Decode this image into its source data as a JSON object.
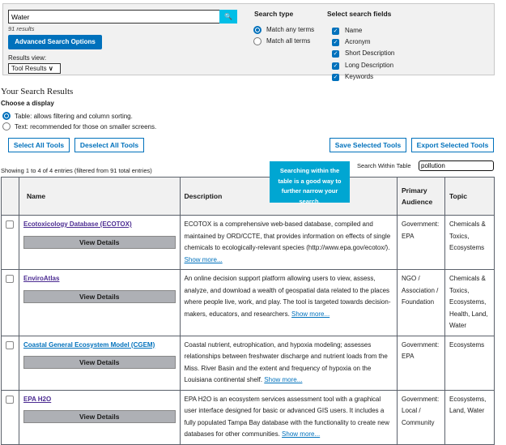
{
  "search": {
    "value": "Water",
    "button_icon": "search-icon",
    "results_count": "91 results",
    "advanced_label": "Advanced Search Options",
    "results_view_label": "Results view:",
    "results_view_value": "Tool Results"
  },
  "search_type": {
    "title": "Search type",
    "options": [
      "Match any terms",
      "Match all terms"
    ],
    "selected": 0
  },
  "search_fields": {
    "title": "Select search fields",
    "options": [
      "Name",
      "Acronym",
      "Short Description",
      "Long Description",
      "Keywords"
    ]
  },
  "results": {
    "heading": "Your Search Results",
    "display_title": "Choose a display",
    "display_options": [
      "Table: allows filtering and column sorting.",
      "Text: recommended for those on smaller screens."
    ],
    "buttons": {
      "select_all": "Select All Tools",
      "deselect_all": "Deselect All Tools",
      "save": "Save Selected Tools",
      "export": "Export Selected Tools"
    },
    "showing": "Showing 1 to 4 of 4 entries (filtered from 91 total entries)",
    "search_within_label": "Search Within Table",
    "search_within_value": "pollution",
    "tooltip": "Searching within the table is a good way to further narrow your search."
  },
  "table": {
    "headers": [
      "Name",
      "Description",
      "Primary Audience",
      "Topic"
    ],
    "view_details": "View Details",
    "show_more": "Show more...",
    "rows": [
      {
        "name": "Ecotoxicology Database (ECOTOX)",
        "description": "ECOTOX is a comprehensive web-based database, compiled and maintained by ORD/CCTE, that provides information on effects of single chemicals to ecologically-relevant species (http://www.epa.gov/ecotox/).",
        "audience": "Government: EPA",
        "topic": "Chemicals & Toxics, Ecosystems"
      },
      {
        "name": "EnviroAtlas",
        "description": "An online decision support platform allowing users to view, assess, analyze, and download a wealth of geospatial data related to the places where people live, work, and play. The tool is targeted towards decision-makers, educators, and researchers.",
        "audience": "NGO / Association / Foundation",
        "topic": "Chemicals & Toxics, Ecosystems, Health, Land, Water"
      },
      {
        "name": "Coastal General Ecosystem Model (CGEM)",
        "description": "Coastal nutrient, eutrophication, and hypoxia modeling; assesses relationships between freshwater discharge and nutrient loads from the Miss. River Basin and the extent and frequency of hypoxia on the Louisiana continental shelf.",
        "audience": "Government: EPA",
        "topic": "Ecosystems"
      },
      {
        "name": "EPA H2O",
        "description": "EPA H2O is an ecosystem services assessment tool with a graphical user interface designed for basic or advanced GIS users. It includes a fully populated Tampa Bay database with the functionality to create new databases for other communities.",
        "audience": "Government: Local / Community",
        "topic": "Ecosystems, Land, Water"
      }
    ]
  }
}
